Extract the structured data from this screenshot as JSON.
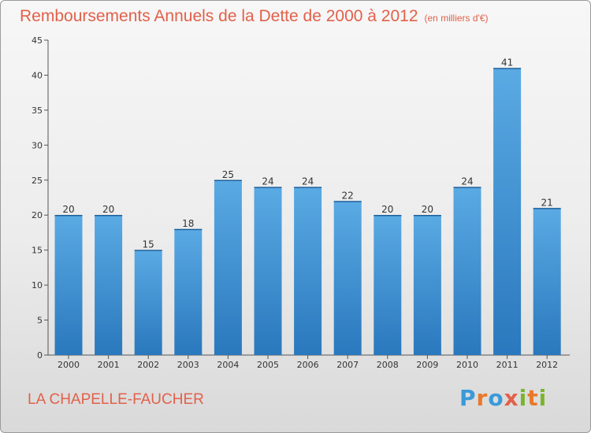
{
  "title": "Remboursements Annuels de la Dette de 2000 à 2012",
  "unit": "(en milliers d'€)",
  "commune": "LA CHAPELLE-FAUCHER",
  "logo": {
    "text": "Proxiti",
    "letters": [
      {
        "char": "P",
        "color": "#3a9ad9"
      },
      {
        "char": "r",
        "color": "#e8792a"
      },
      {
        "char": "o",
        "color": "#3a9ad9"
      },
      {
        "char": "x",
        "color": "#e2604a"
      },
      {
        "char": "i",
        "color": "#7ab52e"
      },
      {
        "char": "t",
        "color": "#e8792a"
      },
      {
        "char": "i",
        "color": "#7ab52e"
      }
    ]
  },
  "colors": {
    "bar_light": "#5aaae4",
    "bar_dark": "#2a78bd",
    "title": "#e2604a"
  },
  "chart_data": {
    "type": "bar",
    "categories": [
      "2000",
      "2001",
      "2002",
      "2003",
      "2004",
      "2005",
      "2006",
      "2007",
      "2008",
      "2009",
      "2010",
      "2011",
      "2012"
    ],
    "values": [
      20,
      20,
      15,
      18,
      25,
      24,
      24,
      22,
      20,
      20,
      24,
      41,
      21
    ],
    "ylim": [
      0,
      45
    ],
    "yticks": [
      0,
      5,
      10,
      15,
      20,
      25,
      30,
      35,
      40,
      45
    ],
    "grid": false,
    "legend": "none"
  }
}
